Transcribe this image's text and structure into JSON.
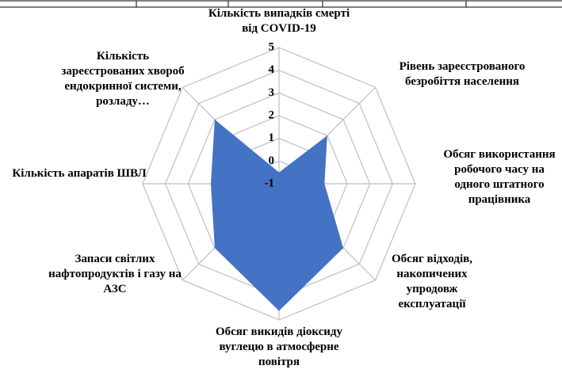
{
  "chart_data": {
    "type": "radar",
    "categories": [
      "Кількість випадків смерті від  COVID-19",
      "Рівень зареєстрованого безробіття населення",
      "Обсяг використання робочого часу на одного штатного працівника",
      "Обсяг відходів, накопичених упродовж експлуатації",
      "Обсяг викидів діоксиду вуглецю в атмосферне повітря",
      "Запаси світлих нафтопродуктів і газу на АЗС",
      "Кількість апаратів ШВЛ",
      "Кількість зареєстрованих хвороб ендокринної системи, розладу…"
    ],
    "values": [
      -0.5,
      2,
      1,
      3,
      4.6,
      3,
      2,
      3
    ],
    "color": "#4472c4",
    "ylim": [
      -1,
      5
    ],
    "yticks": [
      -1,
      0,
      1,
      2,
      3,
      4,
      5
    ],
    "grid": true
  }
}
